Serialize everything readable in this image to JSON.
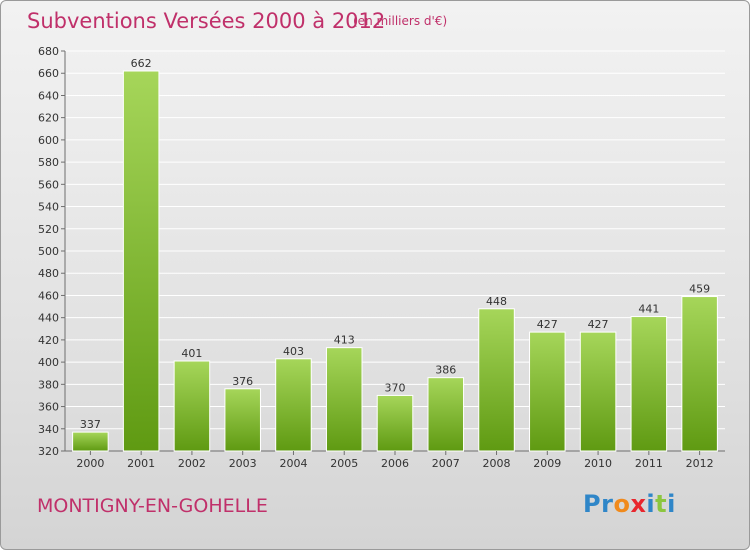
{
  "header": {
    "title": "Subventions Versées 2000 à 2012",
    "unit": "(en milliers d'€)"
  },
  "footer": {
    "commune": "MONTIGNY-EN-GOHELLE",
    "logo_letters": [
      "P",
      "r",
      "o",
      "x",
      "i",
      "t",
      "i"
    ],
    "logo_colors": [
      "#2f86c8",
      "#2f86c8",
      "#f08a1c",
      "#e8262d",
      "#2f86c8",
      "#8cc63f",
      "#2f86c8"
    ]
  },
  "colors": {
    "title": "#c0306a",
    "bar_light": "#a6d65a",
    "bar_dark": "#5f9a12",
    "grid": "#ffffff",
    "axis": "#6e6e6e",
    "text": "#333333"
  },
  "chart_data": {
    "type": "bar",
    "title": "Subventions Versées 2000 à 2012",
    "subtitle": "(en milliers d'€)",
    "xlabel": "",
    "ylabel": "",
    "categories": [
      "2000",
      "2001",
      "2002",
      "2003",
      "2004",
      "2005",
      "2006",
      "2007",
      "2008",
      "2009",
      "2010",
      "2011",
      "2012"
    ],
    "values": [
      337,
      662,
      401,
      376,
      403,
      413,
      370,
      386,
      448,
      427,
      427,
      441,
      459
    ],
    "ylim": [
      320,
      680
    ],
    "ytick_step": 20,
    "grid": true,
    "data_labels": true
  }
}
